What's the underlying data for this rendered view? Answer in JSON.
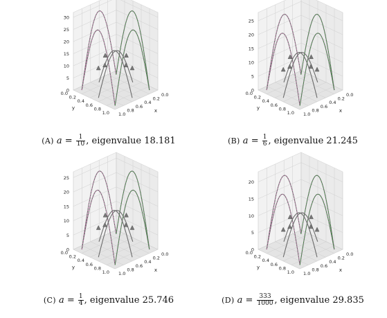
{
  "figure": {
    "panels": [
      {
        "id": "a",
        "letter": "(A)",
        "a_num": "1",
        "a_den": "10",
        "suffix": ", eigenvalue 18.181",
        "zticks": [
          "0",
          "5",
          "10",
          "15",
          "20",
          "25",
          "30"
        ],
        "zmax": 32,
        "xticks": [
          "0.0",
          "0.2",
          "0.4",
          "0.6",
          "0.8",
          "1.0"
        ],
        "yticks": [
          "0.0",
          "0.2",
          "0.4",
          "0.6",
          "0.8",
          "1.0"
        ],
        "xlabel": "x",
        "ylabel": "y"
      },
      {
        "id": "b",
        "letter": "(B)",
        "a_num": "1",
        "a_den": "6",
        "suffix": ", eigenvalue 21.245",
        "zticks": [
          "0",
          "5",
          "10",
          "15",
          "20",
          "25"
        ],
        "zmax": 28,
        "xticks": [
          "0.0",
          "0.2",
          "0.4",
          "0.6",
          "0.8",
          "1.0"
        ],
        "yticks": [
          "0.0",
          "0.2",
          "0.4",
          "0.6",
          "0.8",
          "1.0"
        ],
        "xlabel": "x",
        "ylabel": "y"
      },
      {
        "id": "c",
        "letter": "(C)",
        "a_num": "1",
        "a_den": "4",
        "suffix": ", eigenvalue 25.746",
        "zticks": [
          "0",
          "5",
          "10",
          "15",
          "20",
          "25"
        ],
        "zmax": 27,
        "xticks": [
          "0.0",
          "0.2",
          "0.4",
          "0.6",
          "0.8",
          "1.0"
        ],
        "yticks": [
          "0.0",
          "0.2",
          "0.4",
          "0.6",
          "0.8",
          "1.0"
        ],
        "xlabel": "x",
        "ylabel": "y"
      },
      {
        "id": "d",
        "letter": "(D)",
        "a_num": "333",
        "a_den": "1000",
        "suffix": ", eigenvalue 29.835",
        "zticks": [
          "0",
          "5",
          "10",
          "15",
          "20"
        ],
        "zmax": 23,
        "xticks": [
          "0.0",
          "0.2",
          "0.4",
          "0.6",
          "0.8",
          "1.0"
        ],
        "yticks": [
          "0.0",
          "0.2",
          "0.4",
          "0.6",
          "0.8",
          "1.0"
        ],
        "xlabel": "x",
        "ylabel": "y"
      }
    ],
    "colors": {
      "curve": "#6b6b6b",
      "accent1": "#e377c2",
      "accent2": "#2ca02c",
      "pane": "#f2f2f2"
    }
  }
}
